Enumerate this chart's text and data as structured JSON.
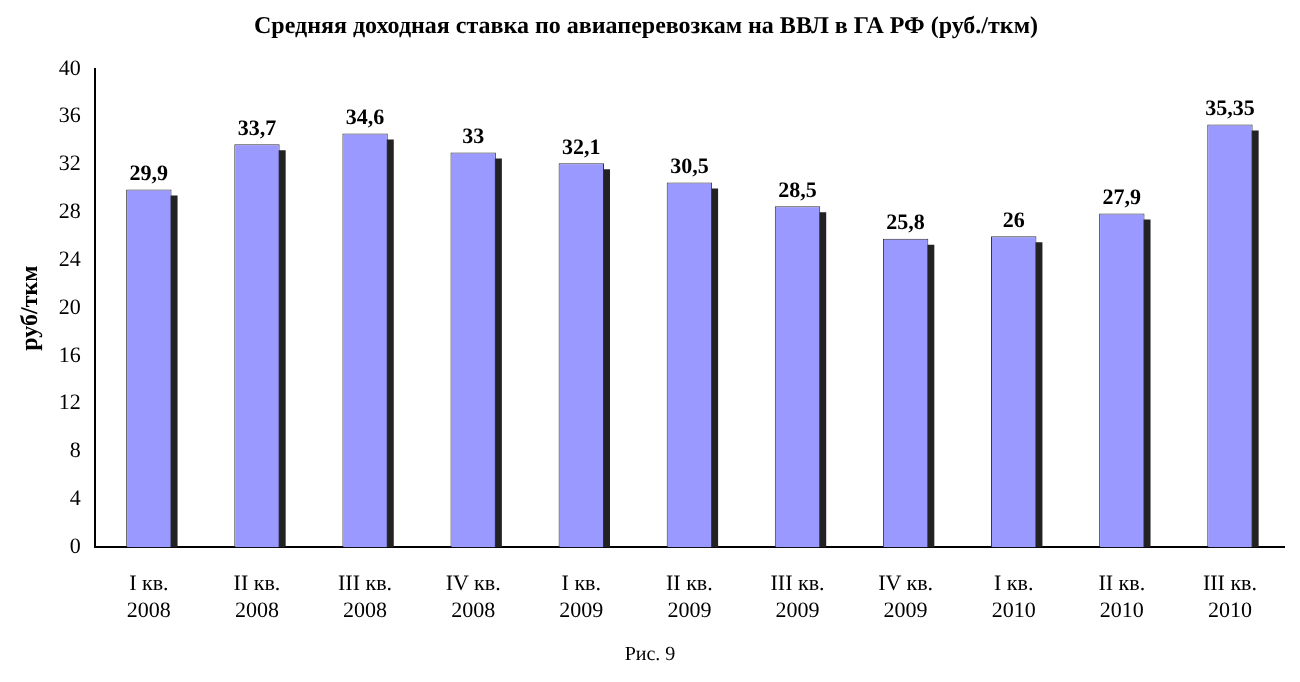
{
  "chart_data": {
    "type": "bar",
    "title": "Средняя доходная ставка по авиаперевозкам на ВВЛ в ГА РФ (руб./ткм)",
    "ylabel": "руб/ткм",
    "categories": [
      "I кв.\n2008",
      "II кв.\n2008",
      "III кв.\n2008",
      "IV кв.\n2008",
      "I кв.\n2009",
      "II кв.\n2009",
      "III кв.\n2009",
      "IV кв.\n2009",
      "I кв.\n2010",
      "II кв.\n2010",
      "III кв.\n2010"
    ],
    "values": [
      29.9,
      33.7,
      34.6,
      33,
      32.1,
      30.5,
      28.5,
      25.8,
      26,
      27.9,
      35.35
    ],
    "value_labels": [
      "29,9",
      "33,7",
      "34,6",
      "33",
      "32,1",
      "30,5",
      "28,5",
      "25,8",
      "26",
      "27,9",
      "35,35"
    ],
    "color": "#9999ff",
    "ylim": [
      0,
      40
    ],
    "yticks": [
      0,
      4,
      8,
      12,
      16,
      20,
      24,
      28,
      32,
      36,
      40
    ],
    "grid": false,
    "legend": false,
    "annotations": [
      "Рис. 9"
    ]
  }
}
